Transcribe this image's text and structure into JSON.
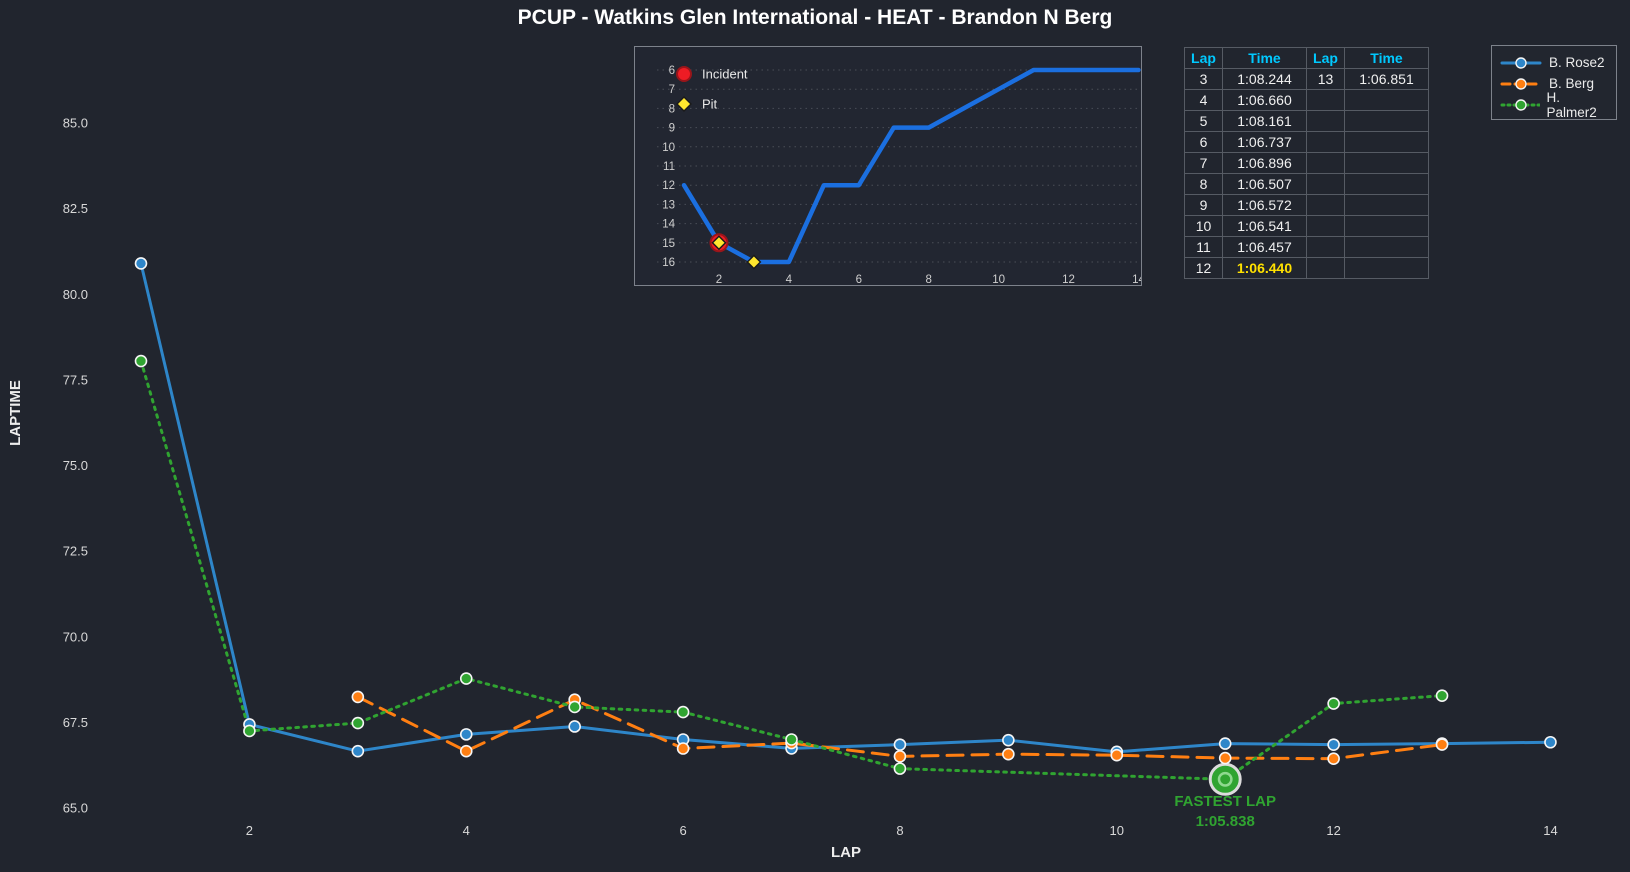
{
  "title": "PCUP - Watkins Glen International - HEAT - Brandon N Berg",
  "colors": {
    "background": "#21252e",
    "blue": "#2e86c9",
    "orange": "#ff7f12",
    "green": "#30a431",
    "inset_blue": "#1b6fe0",
    "incident_red": "#ed1c24",
    "pit_yellow": "#ffe62e",
    "table_header_cyan": "#00c9ff",
    "highlight_yellow": "#ffe100"
  },
  "chart_data": [
    {
      "type": "line",
      "name": "laptime-chart",
      "title": "PCUP - Watkins Glen International - HEAT - Brandon N Berg",
      "xlabel": "LAP",
      "ylabel": "LAPTIME",
      "x_ticks": [
        2,
        4,
        6,
        8,
        10,
        12,
        14
      ],
      "y_ticks": [
        "65.0",
        "67.5",
        "70.0",
        "72.5",
        "75.0",
        "77.5",
        "80.0",
        "82.5",
        "85.0"
      ],
      "xlim": [
        0.5,
        14.7
      ],
      "ylim": [
        64,
        86
      ],
      "grid": false,
      "legend_position": "outside-top-right",
      "series": [
        {
          "name": "B. Rose2",
          "color": "#2e86c9",
          "line": "solid",
          "x": [
            1,
            2,
            3,
            4,
            5,
            6,
            7,
            8,
            9,
            10,
            11,
            12,
            13,
            14
          ],
          "y": [
            80.9,
            67.44,
            66.66,
            67.15,
            67.38,
            67.0,
            66.74,
            66.85,
            66.98,
            66.64,
            66.88,
            66.85,
            66.88,
            66.92
          ]
        },
        {
          "name": "B. Berg",
          "color": "#ff7f12",
          "line": "dashed",
          "x": [
            3,
            4,
            5,
            6,
            7,
            8,
            9,
            10,
            11,
            12,
            13
          ],
          "y": [
            68.244,
            66.66,
            68.161,
            66.737,
            66.896,
            66.507,
            66.572,
            66.541,
            66.457,
            66.44,
            66.851
          ]
        },
        {
          "name": "H. Palmer2",
          "color": "#30a431",
          "line": "dotted",
          "x": [
            1,
            2,
            3,
            4,
            5,
            6,
            7,
            8,
            11,
            12,
            13
          ],
          "y": [
            78.05,
            67.25,
            67.48,
            68.78,
            67.95,
            67.8,
            67.0,
            66.15,
            65.838,
            68.05,
            68.28
          ]
        }
      ],
      "annotation": {
        "text_line1": "FASTEST LAP",
        "text_line2": "1:05.838",
        "x": 11,
        "y": 65.838,
        "color": "#30a431"
      }
    },
    {
      "type": "line",
      "name": "position-inset-chart",
      "xlabel": "",
      "ylabel": "",
      "x_ticks": [
        2,
        4,
        6,
        8,
        10,
        12,
        14
      ],
      "y_ticks": [
        6,
        7,
        8,
        9,
        10,
        11,
        12,
        13,
        14,
        15,
        16
      ],
      "xlim": [
        0.5,
        14.5
      ],
      "ylim": [
        5.5,
        16.5
      ],
      "y_inverted": true,
      "grid": true,
      "series": [
        {
          "name": "position",
          "color": "#1b6fe0",
          "line": "solid",
          "x": [
            1,
            2,
            3,
            4,
            5,
            6,
            7,
            8,
            9,
            10,
            11,
            12,
            13,
            14
          ],
          "y": [
            12,
            15,
            16,
            16,
            12,
            12,
            9,
            9,
            8,
            7,
            6,
            6,
            6,
            6
          ]
        }
      ],
      "event_markers": [
        {
          "type": "Incident",
          "x": 2,
          "y": 15
        },
        {
          "type": "Pit",
          "x": 2,
          "y": 15
        },
        {
          "type": "Pit",
          "x": 3,
          "y": 16
        }
      ],
      "legend": [
        {
          "label": "Incident",
          "shape": "circle",
          "color": "#ed1c24"
        },
        {
          "label": "Pit",
          "shape": "diamond",
          "color": "#ffe62e"
        }
      ]
    }
  ],
  "lap_table": {
    "headers": [
      "Lap",
      "Time",
      "Lap",
      "Time"
    ],
    "rows": [
      {
        "lap": "3",
        "time": "1:08.244",
        "lap2": "13",
        "time2": "1:06.851"
      },
      {
        "lap": "4",
        "time": "1:06.660",
        "lap2": "",
        "time2": ""
      },
      {
        "lap": "5",
        "time": "1:08.161",
        "lap2": "",
        "time2": ""
      },
      {
        "lap": "6",
        "time": "1:06.737",
        "lap2": "",
        "time2": ""
      },
      {
        "lap": "7",
        "time": "1:06.896",
        "lap2": "",
        "time2": ""
      },
      {
        "lap": "8",
        "time": "1:06.507",
        "lap2": "",
        "time2": ""
      },
      {
        "lap": "9",
        "time": "1:06.572",
        "lap2": "",
        "time2": ""
      },
      {
        "lap": "10",
        "time": "1:06.541",
        "lap2": "",
        "time2": ""
      },
      {
        "lap": "11",
        "time": "1:06.457",
        "lap2": "",
        "time2": ""
      },
      {
        "lap": "12",
        "time": "1:06.440",
        "lap2": "",
        "time2": ""
      }
    ],
    "highlight_lap": "12"
  },
  "legend": {
    "items": [
      {
        "label": "B. Rose2",
        "color": "#2e86c9",
        "line": "solid"
      },
      {
        "label": "B. Berg",
        "color": "#ff7f12",
        "line": "dashed"
      },
      {
        "label": "H. Palmer2",
        "color": "#30a431",
        "line": "dotted"
      }
    ]
  }
}
